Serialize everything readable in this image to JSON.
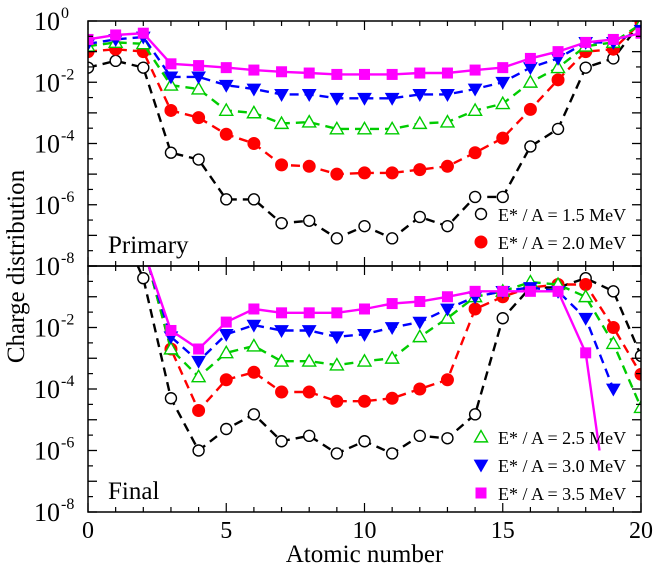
{
  "chart_data": {
    "type": "line",
    "xlabel": "Atomic number",
    "ylabel": "Charge distribution",
    "xlim": [
      0,
      20
    ],
    "ylim": [
      1e-08,
      1
    ],
    "y_scale": "log",
    "grid": false,
    "shared_x_axis": true,
    "x_ticks": [
      0,
      5,
      10,
      15,
      20
    ],
    "x_tick_labels": [
      "0",
      "5",
      "10",
      "15",
      "20"
    ],
    "y_ticks_exponent": [
      -8,
      -6,
      -4,
      -2,
      0
    ],
    "y_tick_labels": [
      {
        "base": "10",
        "exp": "-8"
      },
      {
        "base": "10",
        "exp": "-6"
      },
      {
        "base": "10",
        "exp": "-4"
      },
      {
        "base": "10",
        "exp": "-2"
      },
      {
        "base": "10",
        "exp": "0"
      }
    ],
    "panels": [
      {
        "label": "Primary",
        "legend_placement": "bottom-right",
        "series": [
          {
            "name": "E* / A = 1.5 MeV",
            "color": "#000000",
            "marker": "open-circle",
            "line": "dashed",
            "x": [
              0,
              1,
              2,
              3,
              4,
              5,
              6,
              7,
              8,
              9,
              10,
              11,
              12,
              13,
              14,
              15,
              16,
              17,
              18,
              19,
              20
            ],
            "y": [
              0.03,
              0.05,
              0.03,
              5e-05,
              3e-05,
              1.5e-06,
              1.5e-06,
              2.5e-07,
              3e-07,
              8e-08,
              2e-07,
              8e-08,
              4e-07,
              2e-07,
              1.8e-06,
              1.8e-06,
              8e-05,
              0.0003,
              0.03,
              0.06,
              0.9
            ]
          },
          {
            "name": "E* / A = 2.0 MeV",
            "color": "#ff0000",
            "marker": "filled-circle",
            "line": "dashed",
            "x": [
              0,
              1,
              2,
              3,
              4,
              5,
              6,
              7,
              8,
              9,
              10,
              11,
              12,
              13,
              14,
              15,
              16,
              17,
              18,
              19,
              20
            ],
            "y": [
              0.1,
              0.12,
              0.1,
              0.0012,
              0.0007,
              0.0002,
              0.0001,
              2e-05,
              1.8e-05,
              1e-05,
              1.1e-05,
              1.1e-05,
              1.4e-05,
              1.8e-05,
              5e-05,
              0.00015,
              0.0013,
              0.012,
              0.1,
              0.12,
              0.9
            ]
          },
          {
            "name": "E* / A = 2.5 MeV",
            "color": "#00cc00",
            "marker": "open-triangle-up",
            "line": "dashed",
            "x": [
              0,
              1,
              2,
              3,
              4,
              5,
              6,
              7,
              8,
              9,
              10,
              11,
              12,
              13,
              14,
              15,
              16,
              17,
              18,
              19,
              20
            ],
            "y": [
              0.15,
              0.2,
              0.18,
              0.008,
              0.006,
              0.0012,
              0.001,
              0.00045,
              0.0005,
              0.0003,
              0.0003,
              0.0003,
              0.00045,
              0.0005,
              0.0012,
              0.002,
              0.01,
              0.03,
              0.15,
              0.2,
              0.8
            ]
          },
          {
            "name": "E* / A = 3.0 MeV",
            "color": "#0000ff",
            "marker": "filled-triangle-down",
            "line": "dashed",
            "x": [
              0,
              1,
              2,
              3,
              4,
              5,
              6,
              7,
              8,
              9,
              10,
              11,
              12,
              13,
              14,
              15,
              16,
              17,
              18,
              19,
              20
            ],
            "y": [
              0.18,
              0.25,
              0.3,
              0.015,
              0.015,
              0.008,
              0.006,
              0.004,
              0.004,
              0.003,
              0.003,
              0.003,
              0.004,
              0.004,
              0.006,
              0.01,
              0.03,
              0.06,
              0.2,
              0.2,
              0.5
            ]
          },
          {
            "name": "E* / A = 3.5 MeV",
            "color": "#ff00ff",
            "marker": "filled-square",
            "line": "solid",
            "x": [
              0,
              1,
              2,
              3,
              4,
              5,
              6,
              7,
              8,
              9,
              10,
              11,
              12,
              13,
              14,
              15,
              16,
              17,
              18,
              19,
              20
            ],
            "y": [
              0.25,
              0.35,
              0.4,
              0.04,
              0.035,
              0.03,
              0.025,
              0.022,
              0.02,
              0.018,
              0.018,
              0.018,
              0.02,
              0.02,
              0.025,
              0.03,
              0.06,
              0.1,
              0.2,
              0.25,
              0.4
            ]
          }
        ]
      },
      {
        "label": "Final",
        "legend_placement": "bottom-right",
        "series": [
          {
            "name": "E* / A = 1.5 MeV",
            "color": "#000000",
            "marker": "open-circle",
            "line": "dashed",
            "x": [
              2,
              3,
              4,
              5,
              6,
              7,
              8,
              9,
              10,
              11,
              12,
              13,
              14,
              15,
              16,
              17,
              18,
              19,
              20
            ],
            "y": [
              0.4,
              5e-05,
              1e-06,
              5e-06,
              1.5e-05,
              2e-06,
              3e-06,
              8e-07,
              2e-06,
              8e-07,
              3e-06,
              2.5e-06,
              1.5e-05,
              0.02,
              0.2,
              0.2,
              0.4,
              0.15,
              0.0012
            ],
            "x_line_start": [
              1.8
            ],
            "y_line_start": [
              1.0
            ]
          },
          {
            "name": "E* / A = 2.0 MeV",
            "color": "#ff0000",
            "marker": "filled-circle",
            "line": "dashed",
            "x": [
              3,
              4,
              5,
              6,
              7,
              8,
              9,
              10,
              11,
              12,
              13,
              14,
              15,
              16,
              17,
              18,
              19,
              20
            ],
            "y": [
              0.002,
              2e-05,
              0.0002,
              0.00035,
              8e-05,
              8e-05,
              4e-05,
              4e-05,
              5e-05,
              0.0001,
              0.0002,
              0.04,
              0.1,
              0.2,
              0.25,
              0.25,
              0.01,
              0.0003
            ],
            "x_line_start": [
              2.2
            ],
            "y_line_start": [
              1.0
            ]
          },
          {
            "name": "E* / A = 2.5 MeV",
            "color": "#00cc00",
            "marker": "open-triangle-up",
            "line": "dashed",
            "x": [
              3,
              4,
              5,
              6,
              7,
              8,
              9,
              10,
              11,
              12,
              13,
              14,
              15,
              16,
              17,
              18,
              19,
              20
            ],
            "y": [
              0.002,
              0.00025,
              0.0015,
              0.0025,
              0.0008,
              0.0008,
              0.0006,
              0.0008,
              0.001,
              0.005,
              0.02,
              0.1,
              0.15,
              0.3,
              0.25,
              0.1,
              0.003,
              2.5e-05
            ],
            "x_line_start": [
              2.2
            ],
            "y_line_start": [
              1.0
            ]
          },
          {
            "name": "E* / A = 3.0 MeV",
            "color": "#0000ff",
            "marker": "filled-triangle-down",
            "line": "dashed",
            "x": [
              3,
              4,
              5,
              6,
              7,
              8,
              9,
              10,
              11,
              12,
              13,
              14,
              15,
              16,
              17,
              18,
              19
            ],
            "y": [
              0.005,
              0.0008,
              0.006,
              0.012,
              0.008,
              0.008,
              0.005,
              0.006,
              0.01,
              0.015,
              0.04,
              0.1,
              0.15,
              0.2,
              0.15,
              0.02,
              0.0001
            ],
            "x_line_start": [
              2.2
            ],
            "y_line_start": [
              1.0
            ]
          },
          {
            "name": "E* / A = 3.5 MeV",
            "color": "#ff00ff",
            "marker": "filled-square",
            "line": "solid",
            "x": [
              3,
              4,
              5,
              6,
              7,
              8,
              9,
              10,
              11,
              12,
              13,
              14,
              15,
              16,
              17,
              18
            ],
            "y": [
              0.008,
              0.002,
              0.015,
              0.04,
              0.03,
              0.03,
              0.03,
              0.04,
              0.06,
              0.07,
              0.1,
              0.15,
              0.15,
              0.15,
              0.15,
              0.0015
            ],
            "x_line_start": [
              2.2
            ],
            "y_line_start": [
              1.0
            ],
            "x_line_end": [
              18.5
            ],
            "y_line_end": [
              1e-06
            ]
          }
        ]
      }
    ]
  },
  "colors": {
    "axis": "#000000",
    "background": "#ffffff"
  }
}
